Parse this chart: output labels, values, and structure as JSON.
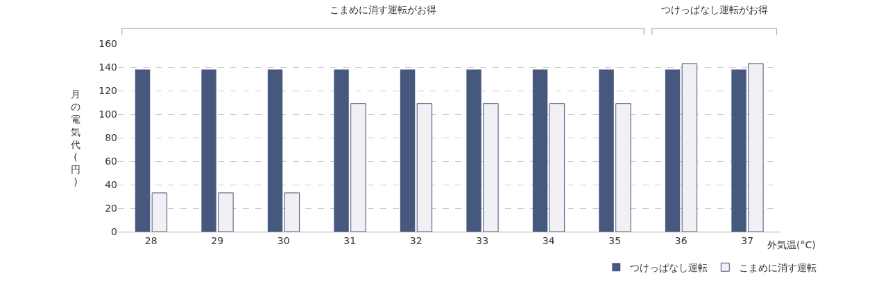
{
  "chart_data": {
    "type": "bar",
    "categories": [
      "28",
      "29",
      "30",
      "31",
      "32",
      "33",
      "34",
      "35",
      "36",
      "37"
    ],
    "series": [
      {
        "name": "つけっぱなし運転",
        "color": "#47587f",
        "values": [
          138,
          138,
          138,
          138,
          138,
          138,
          138,
          138,
          138,
          138
        ]
      },
      {
        "name": "こまめに消す運転",
        "color": "#f0f0f5",
        "values": [
          33,
          33,
          33,
          109,
          109,
          109,
          109,
          109,
          143,
          143
        ]
      }
    ],
    "xlabel": "外気温(°C)",
    "ylabel": "月の電気代(円)",
    "ylim": [
      0,
      160
    ],
    "yticks": [
      0,
      20,
      40,
      60,
      80,
      100,
      120,
      140,
      160
    ],
    "grid": "y",
    "legend": "bottom right",
    "annotations": [
      "こまめに消す運転がお得",
      "つけっぱなし運転がお得"
    ]
  }
}
